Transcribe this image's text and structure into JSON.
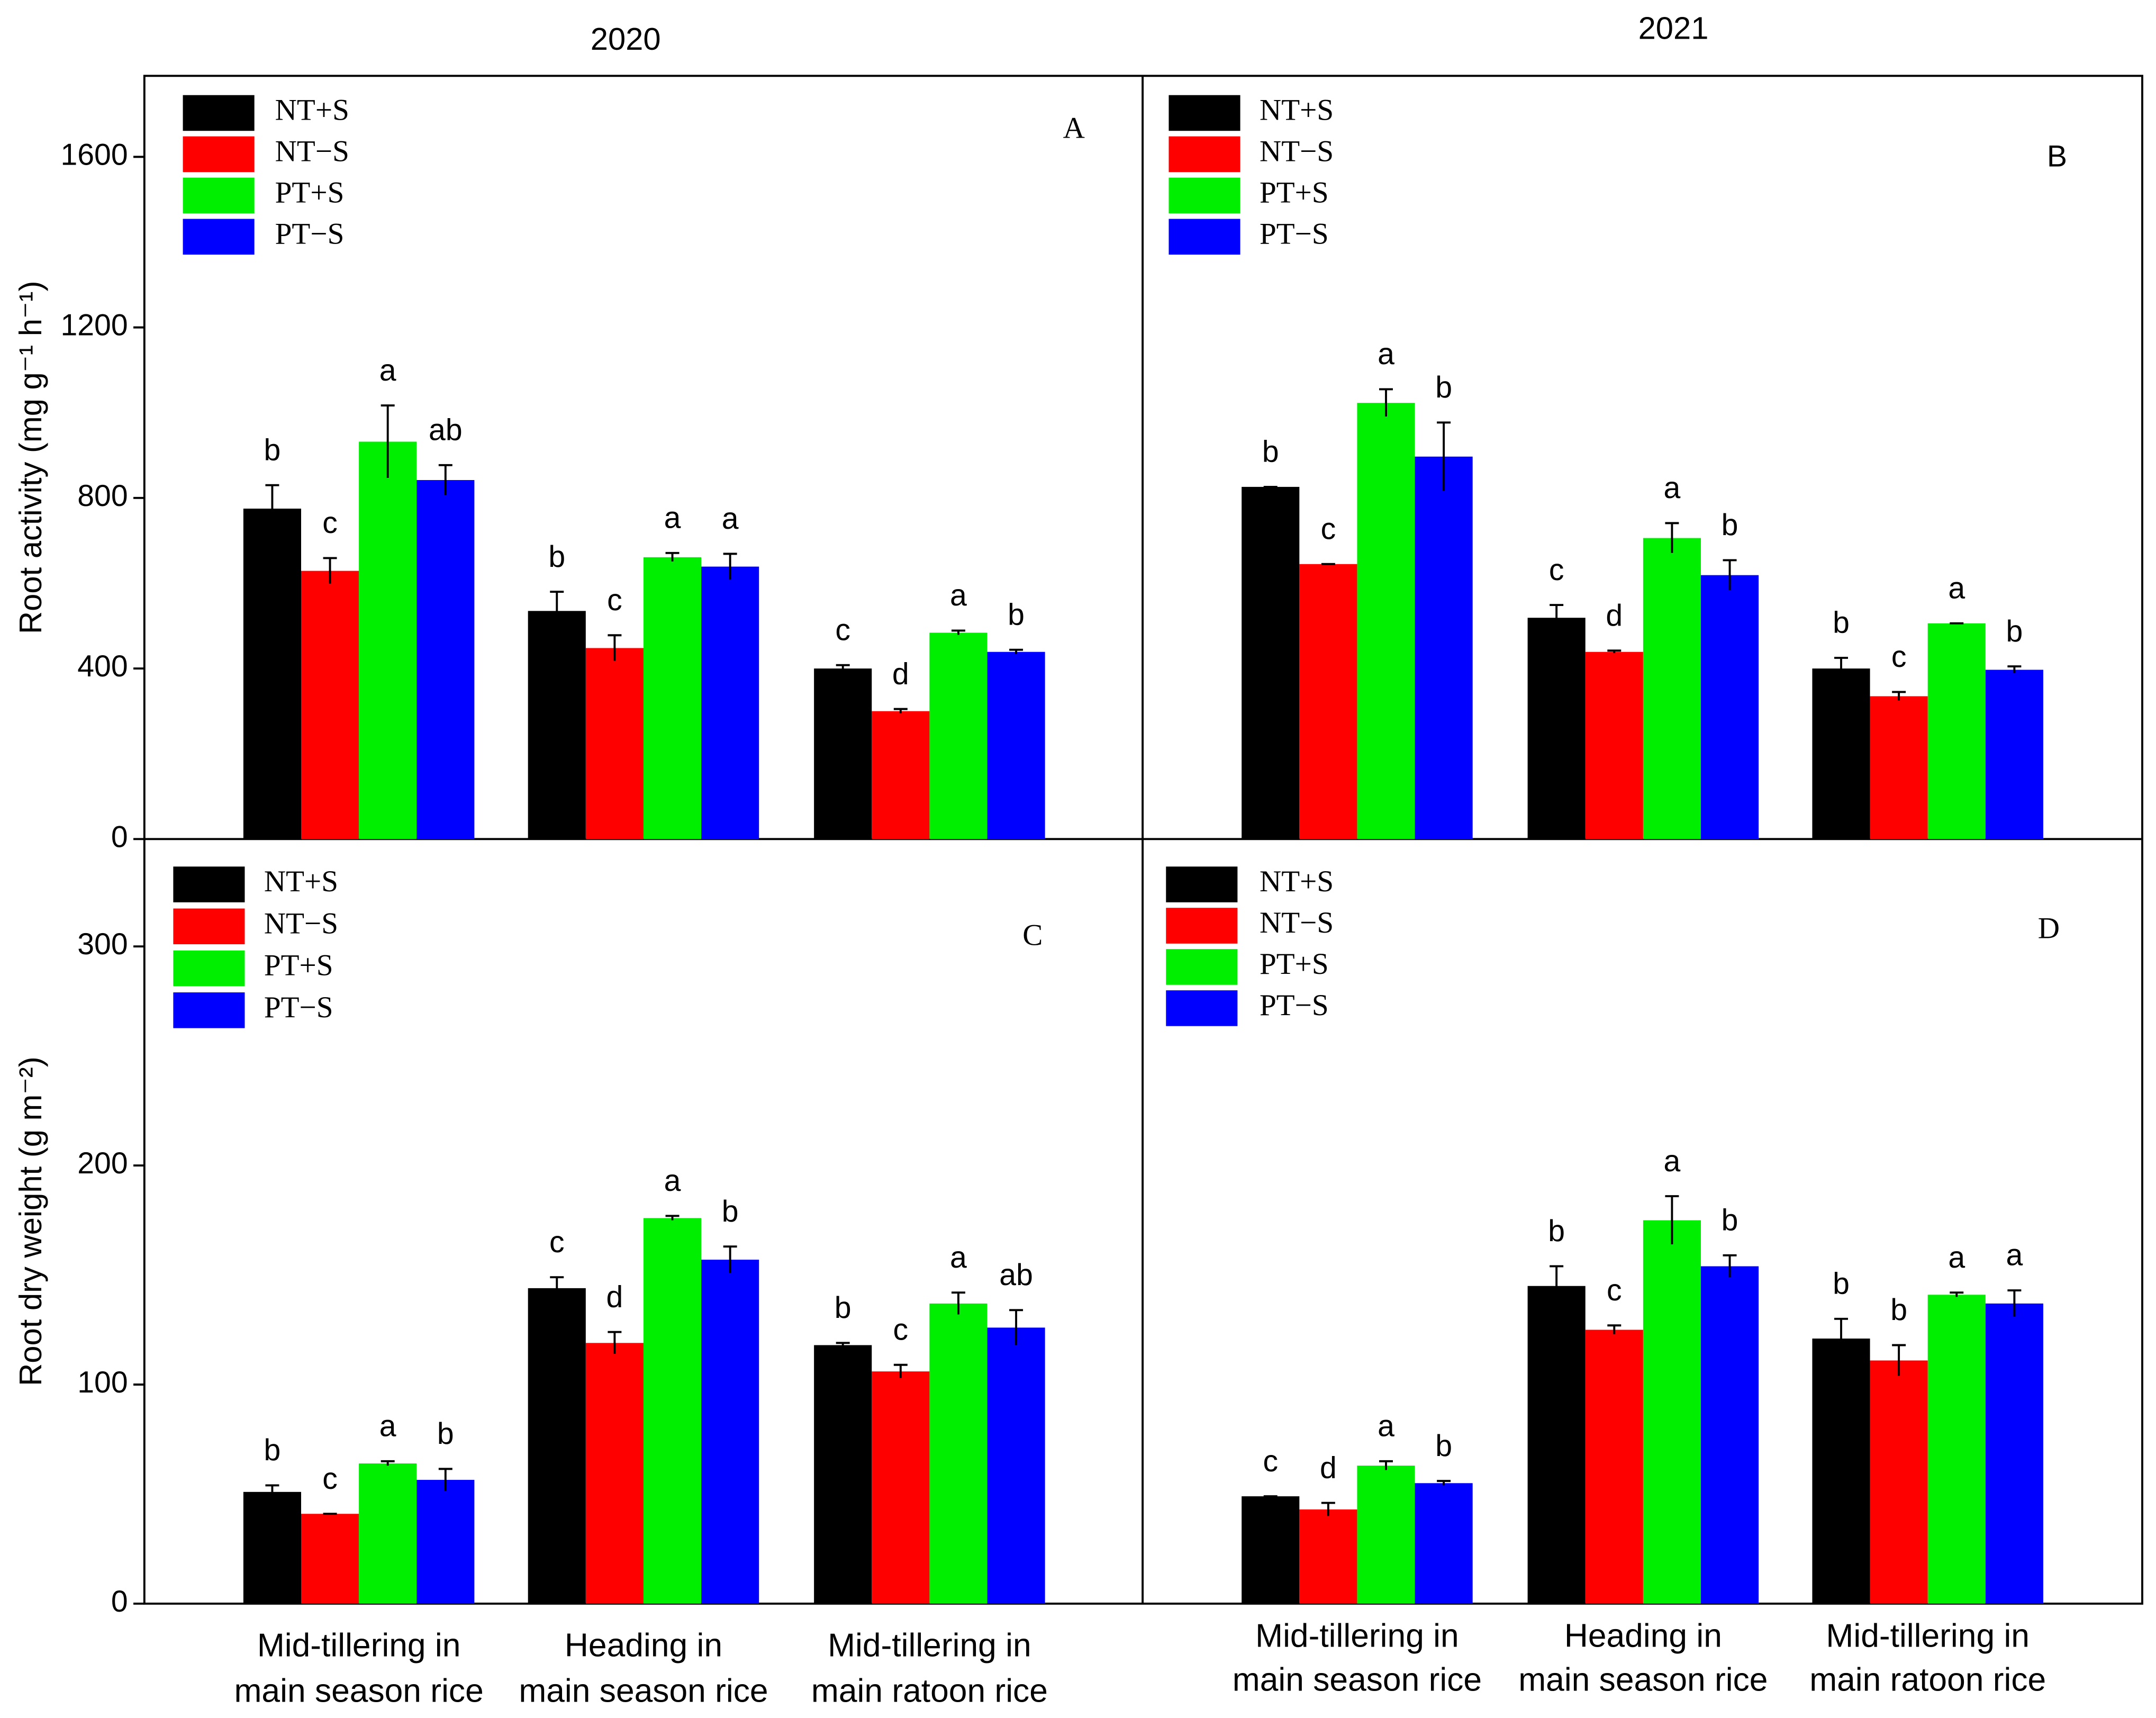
{
  "chart_data": [
    {
      "type": "bar",
      "title": "2020",
      "panel_label": "A",
      "ylabel": "Root activity (mg g⁻¹ h⁻¹)",
      "ylim": [
        0,
        1790
      ],
      "yticks": [
        0,
        400,
        800,
        1200,
        1600
      ],
      "series": [
        {
          "name": "NT+S",
          "color": "#000000",
          "values": [
            775,
            535,
            400
          ],
          "errors": [
            55,
            45,
            8
          ],
          "letters": [
            "b",
            "b",
            "c"
          ]
        },
        {
          "name": "NT−S",
          "color": "#ff0000",
          "values": [
            629,
            448,
            300
          ],
          "errors": [
            30,
            30,
            5
          ],
          "letters": [
            "c",
            "c",
            "d"
          ]
        },
        {
          "name": "PT+S",
          "color": "#00ee00",
          "values": [
            932,
            661,
            484
          ],
          "errors": [
            85,
            10,
            5
          ],
          "letters": [
            "a",
            "a",
            "a"
          ]
        },
        {
          "name": "PT−S",
          "color": "#0000ff",
          "values": [
            842,
            639,
            439
          ],
          "errors": [
            35,
            30,
            5
          ],
          "letters": [
            "ab",
            "a",
            "b"
          ]
        }
      ]
    },
    {
      "type": "bar",
      "title": "2021",
      "panel_label": "B",
      "ylim": [
        0,
        1790
      ],
      "series": [
        {
          "name": "NT+S",
          "color": "#000000",
          "values": [
            826,
            519,
            400
          ],
          "errors": [
            0,
            30,
            25
          ],
          "letters": [
            "b",
            "c",
            "b"
          ]
        },
        {
          "name": "NT−S",
          "color": "#ff0000",
          "values": [
            645,
            439,
            335
          ],
          "errors": [
            0,
            3,
            10
          ],
          "letters": [
            "c",
            "d",
            "c"
          ]
        },
        {
          "name": "PT+S",
          "color": "#00ee00",
          "values": [
            1023,
            706,
            506
          ],
          "errors": [
            32,
            35,
            0
          ],
          "letters": [
            "a",
            "a",
            "a"
          ]
        },
        {
          "name": "PT−S",
          "color": "#0000ff",
          "values": [
            897,
            619,
            397
          ],
          "errors": [
            80,
            35,
            8
          ],
          "letters": [
            "b",
            "b",
            "b"
          ]
        }
      ]
    },
    {
      "type": "bar",
      "panel_label": "C",
      "ylabel": "Root dry weight  (g m⁻²)",
      "ylim": [
        0,
        349
      ],
      "yticks": [
        0,
        100,
        200,
        300
      ],
      "categories": [
        [
          "Mid-tillering in",
          "main season rice"
        ],
        [
          "Heading in",
          "main season rice"
        ],
        [
          "Mid-tillering in",
          "main ratoon rice"
        ]
      ],
      "series": [
        {
          "name": "NT+S",
          "color": "#000000",
          "values": [
            51,
            144,
            118
          ],
          "errors": [
            3,
            5,
            1
          ],
          "letters": [
            "b",
            "c",
            "b"
          ]
        },
        {
          "name": "NT−S",
          "color": "#ff0000",
          "values": [
            41,
            119,
            106
          ],
          "errors": [
            0,
            5,
            3
          ],
          "letters": [
            "c",
            "d",
            "c"
          ]
        },
        {
          "name": "PT+S",
          "color": "#00ee00",
          "values": [
            64,
            176,
            137
          ],
          "errors": [
            1,
            1,
            5
          ],
          "letters": [
            "a",
            "a",
            "a"
          ]
        },
        {
          "name": "PT−S",
          "color": "#0000ff",
          "values": [
            56.5,
            157,
            126
          ],
          "errors": [
            5,
            6,
            8
          ],
          "letters": [
            "b",
            "b",
            "ab"
          ]
        }
      ]
    },
    {
      "type": "bar",
      "panel_label": "D",
      "ylim": [
        0,
        349
      ],
      "categories": [
        [
          "Mid-tillering in",
          "main season rice"
        ],
        [
          "Heading in",
          "main season rice"
        ],
        [
          "Mid-tillering in",
          "main ratoon rice"
        ]
      ],
      "series": [
        {
          "name": "NT+S",
          "color": "#000000",
          "values": [
            49,
            145,
            121
          ],
          "errors": [
            0,
            9,
            9
          ],
          "letters": [
            "c",
            "b",
            "b"
          ]
        },
        {
          "name": "NT−S",
          "color": "#ff0000",
          "values": [
            43,
            125,
            111
          ],
          "errors": [
            3,
            2,
            7
          ],
          "letters": [
            "d",
            "c",
            "b"
          ]
        },
        {
          "name": "PT+S",
          "color": "#00ee00",
          "values": [
            63,
            175,
            141
          ],
          "errors": [
            2,
            11,
            1
          ],
          "letters": [
            "a",
            "a",
            "a"
          ]
        },
        {
          "name": "PT−S",
          "color": "#0000ff",
          "values": [
            55,
            154,
            137
          ],
          "errors": [
            1,
            5,
            6
          ],
          "letters": [
            "b",
            "b",
            "a"
          ]
        }
      ]
    }
  ]
}
